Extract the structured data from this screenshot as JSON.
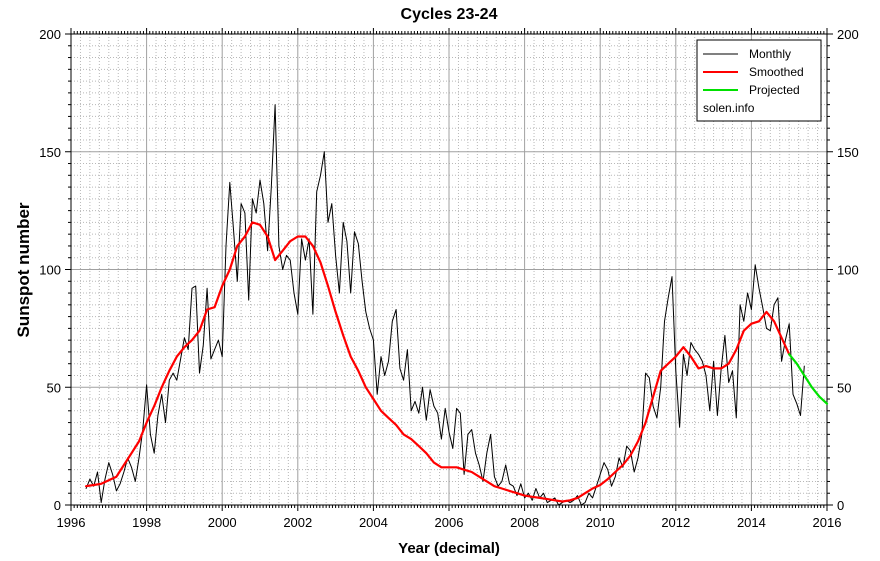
{
  "chart_data": {
    "type": "line",
    "title": "Cycles 23-24",
    "xlabel": "Year (decimal)",
    "ylabel": "Sunspot number",
    "xlim": [
      1996,
      2016
    ],
    "ylim": [
      0,
      200
    ],
    "x_ticks": [
      "1996",
      "1998",
      "2000",
      "2002",
      "2004",
      "2006",
      "2008",
      "2010",
      "2012",
      "2014",
      "2016"
    ],
    "y_ticks": [
      "0",
      "50",
      "100",
      "150",
      "200"
    ],
    "grid": true,
    "legend_position": "top-right",
    "legend": {
      "entries": [
        "Monthly",
        "Smoothed",
        "Projected"
      ],
      "note": "solen.info"
    },
    "series": [
      {
        "name": "Monthly",
        "color": "#000000",
        "points": [
          [
            1996.4,
            7
          ],
          [
            1996.5,
            11
          ],
          [
            1996.6,
            8
          ],
          [
            1996.7,
            14
          ],
          [
            1996.8,
            1
          ],
          [
            1996.9,
            11
          ],
          [
            1997.0,
            18
          ],
          [
            1997.1,
            13
          ],
          [
            1997.2,
            6
          ],
          [
            1997.3,
            9
          ],
          [
            1997.4,
            14
          ],
          [
            1997.5,
            20
          ],
          [
            1997.6,
            16
          ],
          [
            1997.7,
            10
          ],
          [
            1997.8,
            20
          ],
          [
            1997.9,
            32
          ],
          [
            1998.0,
            51
          ],
          [
            1998.1,
            30
          ],
          [
            1998.2,
            22
          ],
          [
            1998.3,
            38
          ],
          [
            1998.4,
            47
          ],
          [
            1998.5,
            35
          ],
          [
            1998.6,
            53
          ],
          [
            1998.7,
            56
          ],
          [
            1998.8,
            53
          ],
          [
            1998.9,
            62
          ],
          [
            1999.0,
            71
          ],
          [
            1999.1,
            66
          ],
          [
            1999.2,
            92
          ],
          [
            1999.3,
            93
          ],
          [
            1999.4,
            56
          ],
          [
            1999.5,
            68
          ],
          [
            1999.6,
            92
          ],
          [
            1999.7,
            62
          ],
          [
            1999.8,
            66
          ],
          [
            1999.9,
            70
          ],
          [
            2000.0,
            63
          ],
          [
            2000.1,
            110
          ],
          [
            2000.2,
            137
          ],
          [
            2000.3,
            117
          ],
          [
            2000.4,
            95
          ],
          [
            2000.5,
            128
          ],
          [
            2000.6,
            124
          ],
          [
            2000.7,
            87
          ],
          [
            2000.8,
            130
          ],
          [
            2000.9,
            124
          ],
          [
            2001.0,
            138
          ],
          [
            2001.1,
            128
          ],
          [
            2001.2,
            108
          ],
          [
            2001.3,
            135
          ],
          [
            2001.4,
            170
          ],
          [
            2001.5,
            110
          ],
          [
            2001.6,
            100
          ],
          [
            2001.7,
            106
          ],
          [
            2001.8,
            104
          ],
          [
            2001.9,
            90
          ],
          [
            2002.0,
            81
          ],
          [
            2002.1,
            113
          ],
          [
            2002.2,
            104
          ],
          [
            2002.3,
            113
          ],
          [
            2002.4,
            81
          ],
          [
            2002.5,
            133
          ],
          [
            2002.6,
            140
          ],
          [
            2002.7,
            150
          ],
          [
            2002.8,
            120
          ],
          [
            2002.9,
            128
          ],
          [
            2003.0,
            106
          ],
          [
            2003.1,
            90
          ],
          [
            2003.2,
            120
          ],
          [
            2003.3,
            112
          ],
          [
            2003.4,
            90
          ],
          [
            2003.5,
            116
          ],
          [
            2003.6,
            111
          ],
          [
            2003.7,
            95
          ],
          [
            2003.8,
            82
          ],
          [
            2003.9,
            75
          ],
          [
            2004.0,
            70
          ],
          [
            2004.1,
            47
          ],
          [
            2004.2,
            63
          ],
          [
            2004.3,
            55
          ],
          [
            2004.4,
            61
          ],
          [
            2004.5,
            78
          ],
          [
            2004.6,
            83
          ],
          [
            2004.7,
            58
          ],
          [
            2004.8,
            53
          ],
          [
            2004.9,
            66
          ],
          [
            2005.0,
            40
          ],
          [
            2005.1,
            44
          ],
          [
            2005.2,
            39
          ],
          [
            2005.3,
            50
          ],
          [
            2005.4,
            36
          ],
          [
            2005.5,
            49
          ],
          [
            2005.6,
            42
          ],
          [
            2005.7,
            39
          ],
          [
            2005.8,
            28
          ],
          [
            2005.9,
            41
          ],
          [
            2006.0,
            31
          ],
          [
            2006.1,
            24
          ],
          [
            2006.2,
            41
          ],
          [
            2006.3,
            39
          ],
          [
            2006.4,
            13
          ],
          [
            2006.5,
            30
          ],
          [
            2006.6,
            32
          ],
          [
            2006.7,
            22
          ],
          [
            2006.8,
            17
          ],
          [
            2006.9,
            10
          ],
          [
            2007.0,
            22
          ],
          [
            2007.1,
            30
          ],
          [
            2007.2,
            12
          ],
          [
            2007.3,
            8
          ],
          [
            2007.4,
            10
          ],
          [
            2007.5,
            17
          ],
          [
            2007.6,
            9
          ],
          [
            2007.7,
            8
          ],
          [
            2007.8,
            4
          ],
          [
            2007.9,
            9
          ],
          [
            2008.0,
            3
          ],
          [
            2008.1,
            5
          ],
          [
            2008.2,
            2
          ],
          [
            2008.3,
            7
          ],
          [
            2008.4,
            3
          ],
          [
            2008.5,
            5
          ],
          [
            2008.6,
            1
          ],
          [
            2008.7,
            2
          ],
          [
            2008.8,
            3
          ],
          [
            2008.9,
            0
          ],
          [
            2009.0,
            1
          ],
          [
            2009.1,
            2
          ],
          [
            2009.2,
            1
          ],
          [
            2009.3,
            2
          ],
          [
            2009.4,
            4
          ],
          [
            2009.5,
            0
          ],
          [
            2009.6,
            1
          ],
          [
            2009.7,
            5
          ],
          [
            2009.8,
            3
          ],
          [
            2009.9,
            8
          ],
          [
            2010.0,
            13
          ],
          [
            2010.1,
            18
          ],
          [
            2010.2,
            15
          ],
          [
            2010.3,
            8
          ],
          [
            2010.4,
            12
          ],
          [
            2010.5,
            20
          ],
          [
            2010.6,
            16
          ],
          [
            2010.7,
            25
          ],
          [
            2010.8,
            23
          ],
          [
            2010.9,
            14
          ],
          [
            2011.0,
            20
          ],
          [
            2011.1,
            30
          ],
          [
            2011.2,
            56
          ],
          [
            2011.3,
            54
          ],
          [
            2011.4,
            42
          ],
          [
            2011.5,
            37
          ],
          [
            2011.6,
            50
          ],
          [
            2011.7,
            78
          ],
          [
            2011.8,
            88
          ],
          [
            2011.9,
            97
          ],
          [
            2012.0,
            57
          ],
          [
            2012.1,
            33
          ],
          [
            2012.2,
            64
          ],
          [
            2012.3,
            55
          ],
          [
            2012.4,
            69
          ],
          [
            2012.5,
            66
          ],
          [
            2012.6,
            64
          ],
          [
            2012.7,
            61
          ],
          [
            2012.8,
            55
          ],
          [
            2012.9,
            40
          ],
          [
            2013.0,
            61
          ],
          [
            2013.1,
            38
          ],
          [
            2013.2,
            58
          ],
          [
            2013.3,
            72
          ],
          [
            2013.4,
            52
          ],
          [
            2013.5,
            57
          ],
          [
            2013.6,
            37
          ],
          [
            2013.7,
            85
          ],
          [
            2013.8,
            78
          ],
          [
            2013.9,
            90
          ],
          [
            2014.0,
            83
          ],
          [
            2014.1,
            102
          ],
          [
            2014.2,
            92
          ],
          [
            2014.3,
            84
          ],
          [
            2014.4,
            75
          ],
          [
            2014.5,
            74
          ],
          [
            2014.6,
            85
          ],
          [
            2014.7,
            88
          ],
          [
            2014.8,
            61
          ],
          [
            2014.9,
            70
          ],
          [
            2015.0,
            77
          ],
          [
            2015.1,
            47
          ],
          [
            2015.2,
            43
          ],
          [
            2015.3,
            38
          ],
          [
            2015.4,
            59
          ]
        ]
      },
      {
        "name": "Smoothed",
        "color": "#ff0000",
        "points": [
          [
            1996.4,
            8
          ],
          [
            1996.6,
            8.5
          ],
          [
            1996.8,
            9
          ],
          [
            1997.0,
            10.5
          ],
          [
            1997.2,
            12
          ],
          [
            1997.4,
            17
          ],
          [
            1997.6,
            22
          ],
          [
            1997.8,
            27
          ],
          [
            1998.0,
            35
          ],
          [
            1998.2,
            42
          ],
          [
            1998.4,
            50
          ],
          [
            1998.6,
            57
          ],
          [
            1998.8,
            63
          ],
          [
            1999.0,
            67
          ],
          [
            1999.2,
            70
          ],
          [
            1999.4,
            74
          ],
          [
            1999.6,
            83
          ],
          [
            1999.8,
            84
          ],
          [
            2000.0,
            93
          ],
          [
            2000.2,
            100
          ],
          [
            2000.4,
            110
          ],
          [
            2000.6,
            114
          ],
          [
            2000.8,
            120
          ],
          [
            2001.0,
            119
          ],
          [
            2001.2,
            114
          ],
          [
            2001.4,
            104
          ],
          [
            2001.6,
            108
          ],
          [
            2001.8,
            112
          ],
          [
            2002.0,
            114
          ],
          [
            2002.2,
            114
          ],
          [
            2002.4,
            110
          ],
          [
            2002.6,
            103
          ],
          [
            2002.8,
            93
          ],
          [
            2003.0,
            82
          ],
          [
            2003.2,
            72
          ],
          [
            2003.4,
            63
          ],
          [
            2003.6,
            57
          ],
          [
            2003.8,
            50
          ],
          [
            2004.0,
            45
          ],
          [
            2004.2,
            40
          ],
          [
            2004.4,
            37
          ],
          [
            2004.6,
            34
          ],
          [
            2004.8,
            30
          ],
          [
            2005.0,
            28
          ],
          [
            2005.2,
            25
          ],
          [
            2005.4,
            22
          ],
          [
            2005.6,
            18
          ],
          [
            2005.8,
            16
          ],
          [
            2006.0,
            16
          ],
          [
            2006.2,
            16
          ],
          [
            2006.4,
            15
          ],
          [
            2006.6,
            14
          ],
          [
            2006.8,
            12
          ],
          [
            2007.0,
            10
          ],
          [
            2007.2,
            8
          ],
          [
            2007.4,
            7
          ],
          [
            2007.6,
            6
          ],
          [
            2007.8,
            5
          ],
          [
            2008.0,
            4
          ],
          [
            2008.2,
            3.5
          ],
          [
            2008.4,
            3
          ],
          [
            2008.6,
            2.5
          ],
          [
            2008.8,
            2
          ],
          [
            2009.0,
            1.5
          ],
          [
            2009.2,
            2
          ],
          [
            2009.4,
            3
          ],
          [
            2009.6,
            5
          ],
          [
            2009.8,
            7
          ],
          [
            2010.0,
            8.5
          ],
          [
            2010.2,
            11
          ],
          [
            2010.4,
            14
          ],
          [
            2010.6,
            17
          ],
          [
            2010.8,
            21
          ],
          [
            2011.0,
            27
          ],
          [
            2011.2,
            35
          ],
          [
            2011.4,
            46
          ],
          [
            2011.6,
            57
          ],
          [
            2011.8,
            60
          ],
          [
            2012.0,
            63
          ],
          [
            2012.2,
            67
          ],
          [
            2012.4,
            63
          ],
          [
            2012.6,
            58
          ],
          [
            2012.8,
            59
          ],
          [
            2013.0,
            58
          ],
          [
            2013.2,
            58
          ],
          [
            2013.4,
            60
          ],
          [
            2013.6,
            66
          ],
          [
            2013.8,
            74
          ],
          [
            2014.0,
            77
          ],
          [
            2014.2,
            78
          ],
          [
            2014.4,
            82
          ],
          [
            2014.6,
            78
          ],
          [
            2014.8,
            71
          ],
          [
            2015.0,
            64
          ]
        ]
      },
      {
        "name": "Projected",
        "color": "#00e000",
        "points": [
          [
            2015.0,
            64
          ],
          [
            2015.2,
            60
          ],
          [
            2015.4,
            55
          ],
          [
            2015.6,
            50
          ],
          [
            2015.8,
            46
          ],
          [
            2016.0,
            43
          ]
        ]
      }
    ]
  }
}
